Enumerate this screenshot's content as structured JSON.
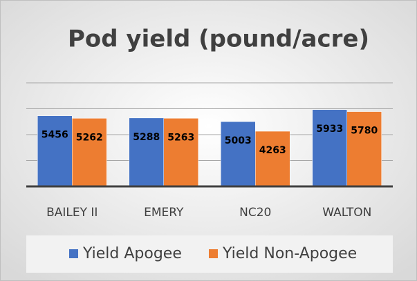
{
  "chart_data": {
    "type": "bar",
    "title": "Pod yield (pound/acre)",
    "categories": [
      "BAILEY II",
      "EMERY",
      "NC20",
      "WALTON"
    ],
    "series": [
      {
        "name": "Yield Apogee",
        "color": "#4472c4",
        "values": [
          5456,
          5288,
          5003,
          5933
        ]
      },
      {
        "name": "Yield Non-Apogee",
        "color": "#ed7d31",
        "values": [
          5262,
          5263,
          4263,
          5780
        ]
      }
    ],
    "ylim": [
      0,
      8000
    ],
    "yticks": [
      0,
      2000,
      4000,
      6000,
      8000
    ],
    "grid": true,
    "legend": "bottom"
  }
}
